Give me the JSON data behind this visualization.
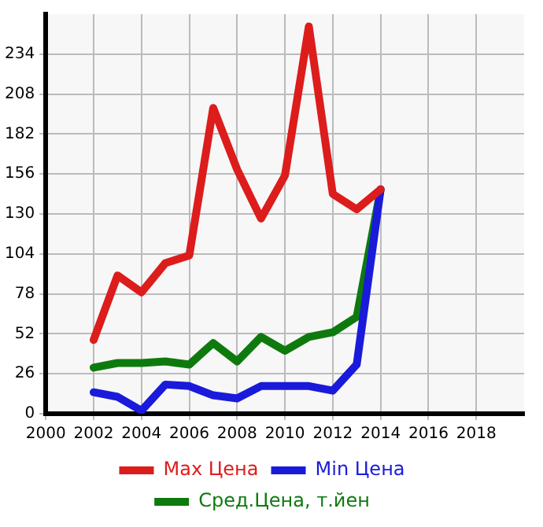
{
  "chart_data": {
    "type": "line",
    "x": [
      2002,
      2003,
      2004,
      2005,
      2006,
      2007,
      2008,
      2009,
      2010,
      2011,
      2012,
      2013,
      2014
    ],
    "series": [
      {
        "name": "Max Цена",
        "color": "#dd1c1c",
        "values": [
          48,
          90,
          79,
          98,
          103,
          199,
          159,
          127,
          155,
          252,
          143,
          133,
          146
        ]
      },
      {
        "name": "Min Цена",
        "color": "#1a1adb",
        "values": [
          14,
          11,
          2,
          19,
          18,
          12,
          10,
          18,
          18,
          18,
          15,
          32,
          146
        ]
      },
      {
        "name": "Сред.Цена, т.йен",
        "color": "#0e7a0e",
        "values": [
          30,
          33,
          33,
          34,
          32,
          46,
          34,
          50,
          41,
          50,
          53,
          63,
          146
        ]
      }
    ],
    "xlim": [
      2000,
      2020
    ],
    "xticks": [
      2000,
      2002,
      2004,
      2006,
      2008,
      2010,
      2012,
      2014,
      2016,
      2018
    ],
    "ylim": [
      0,
      260
    ],
    "yticks": [
      0,
      26,
      52,
      78,
      104,
      130,
      156,
      182,
      208,
      234
    ],
    "grid": true,
    "legend": "bottom",
    "marker": "none",
    "line_style": "solid"
  }
}
